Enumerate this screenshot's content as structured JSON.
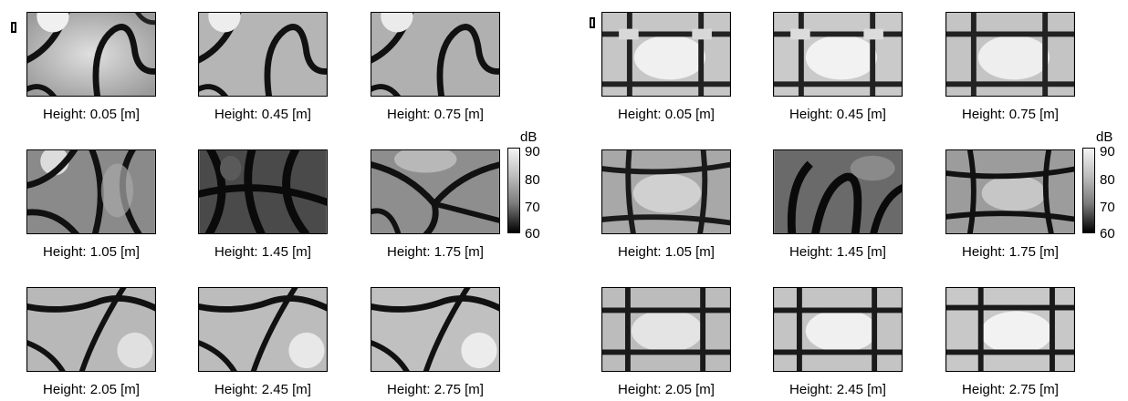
{
  "figures": [
    {
      "captions": [
        "Height: 0.05 [m]",
        "Height: 0.45 [m]",
        "Height: 0.75 [m]",
        "Height: 1.05 [m]",
        "Height: 1.45 [m]",
        "Height: 1.75 [m]",
        "Height: 2.05 [m]",
        "Height: 2.45 [m]",
        "Height: 2.75 [m]"
      ]
    },
    {
      "captions": [
        "Height: 0.05 [m]",
        "Height: 0.45 [m]",
        "Height: 0.75 [m]",
        "Height: 1.05 [m]",
        "Height: 1.45 [m]",
        "Height: 1.75 [m]",
        "Height: 2.05 [m]",
        "Height: 2.45 [m]",
        "Height: 2.75 [m]"
      ]
    }
  ],
  "colorbar": {
    "unit": "dB",
    "ticks": [
      "90",
      "80",
      "70",
      "60"
    ],
    "range": [
      60,
      90
    ],
    "colormap": "gray"
  },
  "chart_data": [
    {
      "type": "heatmap",
      "panel": "left",
      "colorbar_label": "dB",
      "colorbar_range": [
        60,
        90
      ],
      "panels": [
        "Height: 0.05 [m]",
        "Height: 0.45 [m]",
        "Height: 0.75 [m]",
        "Height: 1.05 [m]",
        "Height: 1.45 [m]",
        "Height: 1.75 [m]",
        "Height: 2.05 [m]",
        "Height: 2.45 [m]",
        "Height: 2.75 [m]"
      ]
    },
    {
      "type": "heatmap",
      "panel": "right",
      "colorbar_label": "dB",
      "colorbar_range": [
        60,
        90
      ],
      "panels": [
        "Height: 0.05 [m]",
        "Height: 0.45 [m]",
        "Height: 0.75 [m]",
        "Height: 1.05 [m]",
        "Height: 1.45 [m]",
        "Height: 1.75 [m]",
        "Height: 2.05 [m]",
        "Height: 2.45 [m]",
        "Height: 2.75 [m]"
      ]
    }
  ]
}
